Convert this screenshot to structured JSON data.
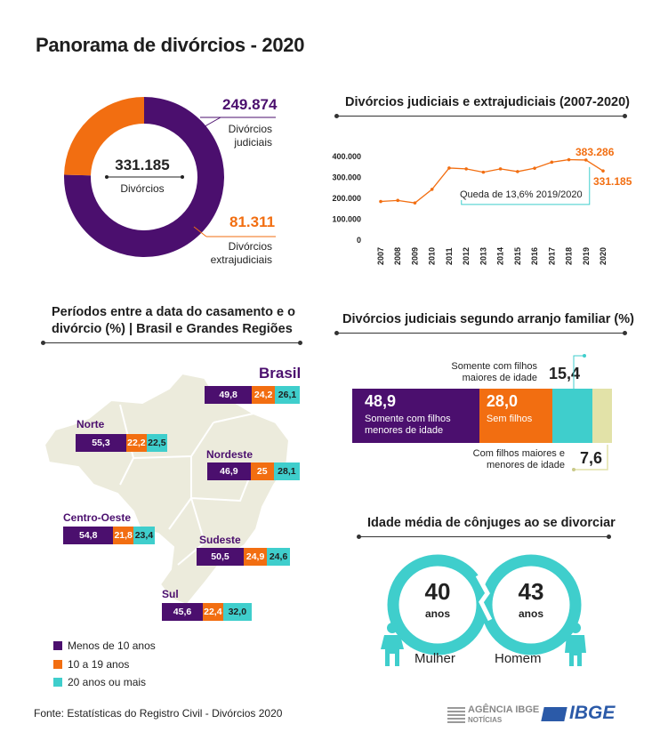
{
  "title": "Panorama de divórcios - 2020",
  "donut": {
    "total_value": "331.185",
    "total_label": "Divórcios",
    "judicial_value": "249.874",
    "judicial_label_1": "Divórcios",
    "judicial_label_2": "judiciais",
    "extra_value": "81.311",
    "extra_label_1": "Divórcios",
    "extra_label_2": "extrajudiciais"
  },
  "line": {
    "title": "Divórcios judiciais e extrajudiciais (2007-2020)",
    "annotation": "Queda de 13,6% 2019/2020",
    "label_2019": "383.286",
    "label_2020": "331.185"
  },
  "periods": {
    "title_1": "Períodos entre a data do casamento e o",
    "title_2": "divórcio (%) | Brasil e Grandes Regiões",
    "legend": [
      "Menos de 10 anos",
      "10 a 19 anos",
      "20 anos ou mais"
    ],
    "regions": [
      {
        "name": "Brasil",
        "labels": [
          "49,8",
          "24,2",
          "26,1"
        ]
      },
      {
        "name": "Norte",
        "labels": [
          "55,3",
          "22,2",
          "22,5"
        ]
      },
      {
        "name": "Nordeste",
        "labels": [
          "46,9",
          "25",
          "28,1"
        ]
      },
      {
        "name": "Centro-Oeste",
        "labels": [
          "54,8",
          "21,8",
          "23,4"
        ]
      },
      {
        "name": "Sudeste",
        "labels": [
          "50,5",
          "24,9",
          "24,6"
        ]
      },
      {
        "name": "Sul",
        "labels": [
          "45,6",
          "22,4",
          "32,0"
        ]
      }
    ]
  },
  "arrangement": {
    "title": "Divórcios judiciais segundo arranjo familiar (%)",
    "seg1_value": "48,9",
    "seg1_l1": "Somente com filhos",
    "seg1_l2": "menores de idade",
    "seg2_value": "28,0",
    "seg2_l1": "Sem filhos",
    "top_l1": "Somente com filhos",
    "top_l2": "maiores de idade",
    "top_value": "15,4",
    "bot_l1": "Com filhos maiores e",
    "bot_l2": "menores de idade",
    "bot_value": "7,6"
  },
  "age": {
    "title": "Idade média de cônjuges ao se divorciar",
    "woman_age": "40",
    "man_age": "43",
    "anos": "anos",
    "woman_label": "Mulher",
    "man_label": "Homem"
  },
  "source": "Fonte: Estatísticas do Registro Civil - Divórcios 2020",
  "logos": {
    "agencia_1": "AGÊNCIA IBGE",
    "agencia_2": "NOTÍCIAS",
    "ibge": "IBGE"
  },
  "colors": {
    "purple": "#4b0f6e",
    "orange": "#f26e11",
    "teal": "#3fcecc",
    "beige": "#e2e2a8",
    "map": "#ecebdc"
  },
  "chart_data": [
    {
      "type": "pie",
      "categories": [
        "Divórcios judiciais",
        "Divórcios extrajudiciais"
      ],
      "values": [
        249874,
        81311
      ],
      "total": 331185
    },
    {
      "type": "line",
      "x": [
        2007,
        2008,
        2009,
        2010,
        2011,
        2012,
        2013,
        2014,
        2015,
        2016,
        2017,
        2018,
        2019,
        2020
      ],
      "x_labels": [
        "2007",
        "2008",
        "2009",
        "2010",
        "2011",
        "2012",
        "2013",
        "2014",
        "2015",
        "2016",
        "2017",
        "2018",
        "2019",
        "2020"
      ],
      "y": [
        185000,
        190000,
        178000,
        243000,
        345000,
        341000,
        325000,
        341000,
        328000,
        344000,
        373000,
        385000,
        383286,
        331185
      ],
      "ylim": [
        0,
        400000
      ],
      "yticks": [
        0,
        100000,
        200000,
        300000,
        400000
      ],
      "ytick_labels": [
        "0",
        "100.000",
        "200.000",
        "300.000",
        "400.000"
      ]
    },
    {
      "type": "bar",
      "orientation": "horizontal-stacked",
      "categories": [
        "Brasil",
        "Norte",
        "Nordeste",
        "Centro-Oeste",
        "Sudeste",
        "Sul"
      ],
      "series": [
        {
          "name": "Menos de 10 anos",
          "values": [
            49.8,
            55.3,
            46.9,
            54.8,
            50.5,
            45.6
          ]
        },
        {
          "name": "10 a 19 anos",
          "values": [
            24.2,
            22.2,
            25.0,
            21.8,
            24.9,
            22.4
          ]
        },
        {
          "name": "20 anos ou mais",
          "values": [
            26.1,
            22.5,
            28.1,
            23.4,
            24.6,
            32.0
          ]
        }
      ]
    },
    {
      "type": "bar",
      "orientation": "horizontal-stacked",
      "categories": [
        "Somente com filhos menores de idade",
        "Sem filhos",
        "Somente com filhos maiores de idade",
        "Com filhos maiores e menores de idade"
      ],
      "values": [
        48.9,
        28.0,
        15.4,
        7.6
      ]
    }
  ]
}
